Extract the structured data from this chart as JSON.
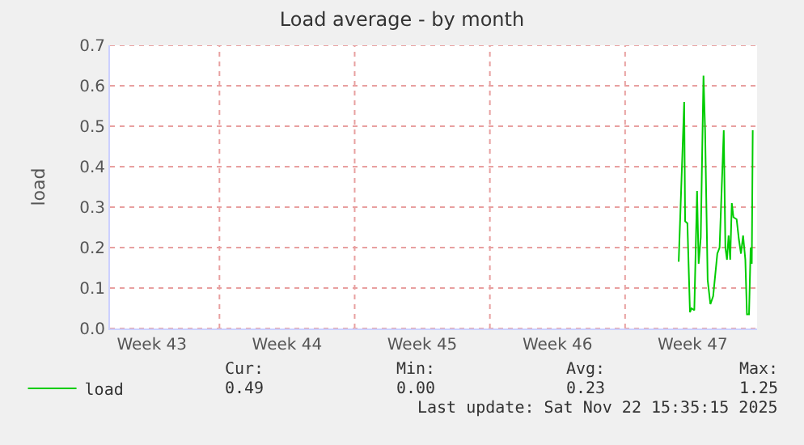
{
  "chart_data": {
    "type": "line",
    "title": "Load average - by month",
    "ylabel": "load",
    "x": [
      "2025-11-18T19:36",
      "2025-11-19T02:24",
      "2025-11-19T03:36",
      "2025-11-19T06:24",
      "2025-11-19T09:36",
      "2025-11-19T11:36",
      "2025-11-19T15:00",
      "2025-11-19T18:24",
      "2025-11-19T20:24",
      "2025-11-19T23:00",
      "2025-11-20T02:24",
      "2025-11-20T04:24",
      "2025-11-20T07:36",
      "2025-11-20T11:00",
      "2025-11-20T14:24",
      "2025-11-20T19:36",
      "2025-11-20T22:24",
      "2025-11-21T01:00",
      "2025-11-21T03:36",
      "2025-11-21T05:36",
      "2025-11-21T07:36",
      "2025-11-21T09:36",
      "2025-11-21T11:36",
      "2025-11-21T13:36",
      "2025-11-21T15:36",
      "2025-11-21T19:36",
      "2025-11-21T22:24",
      "2025-11-22T01:00",
      "2025-11-22T03:36",
      "2025-11-22T06:24",
      "2025-11-22T08:24",
      "2025-11-22T11:00",
      "2025-11-22T13:00",
      "2025-11-22T14:24",
      "2025-11-22T15:36"
    ],
    "series": [
      {
        "name": "load",
        "color": "#00cc00",
        "values": [
          0.165,
          0.56,
          0.265,
          0.26,
          0.04,
          0.05,
          0.045,
          0.34,
          0.16,
          0.225,
          0.625,
          0.49,
          0.12,
          0.06,
          0.08,
          0.185,
          0.2,
          0.345,
          0.49,
          0.2,
          0.17,
          0.23,
          0.17,
          0.31,
          0.275,
          0.27,
          0.22,
          0.185,
          0.23,
          0.17,
          0.035,
          0.035,
          0.2,
          0.16,
          0.49
        ]
      }
    ],
    "xlim": [
      "2025-10-20T09:00",
      "2025-11-22T21:00"
    ],
    "xticks": [
      {
        "value": "2025-10-22T13:00",
        "label": "Week 43"
      },
      {
        "value": "2025-10-26T01:00",
        "label": null
      },
      {
        "value": "2025-10-29T13:00",
        "label": "Week 44"
      },
      {
        "value": "2025-11-02T01:00",
        "label": null
      },
      {
        "value": "2025-11-05T13:00",
        "label": "Week 45"
      },
      {
        "value": "2025-11-09T01:00",
        "label": null
      },
      {
        "value": "2025-11-12T13:00",
        "label": "Week 46"
      },
      {
        "value": "2025-11-16T01:00",
        "label": null
      },
      {
        "value": "2025-11-19T13:00",
        "label": "Week 47"
      }
    ],
    "ylim": [
      0,
      0.7
    ],
    "yticks": [
      {
        "value": 0,
        "label": "0.0"
      },
      {
        "value": 0.1,
        "label": "0.1"
      },
      {
        "value": 0.2,
        "label": "0.2"
      },
      {
        "value": 0.3,
        "label": "0.3"
      },
      {
        "value": 0.4,
        "label": "0.4"
      },
      {
        "value": 0.5,
        "label": "0.5"
      },
      {
        "value": 0.6,
        "label": "0.6"
      },
      {
        "value": 0.7,
        "label": "0.7"
      }
    ],
    "grid": true,
    "legend": "bottom left",
    "marker": "none",
    "line_style": "solid",
    "annotations": [
      "Cur:",
      "Min:",
      "Avg:",
      "Max:",
      "0.49",
      "0.00",
      "0.23",
      "1.25",
      "Last update: Sat Nov 22 15:35:15 2025"
    ]
  }
}
